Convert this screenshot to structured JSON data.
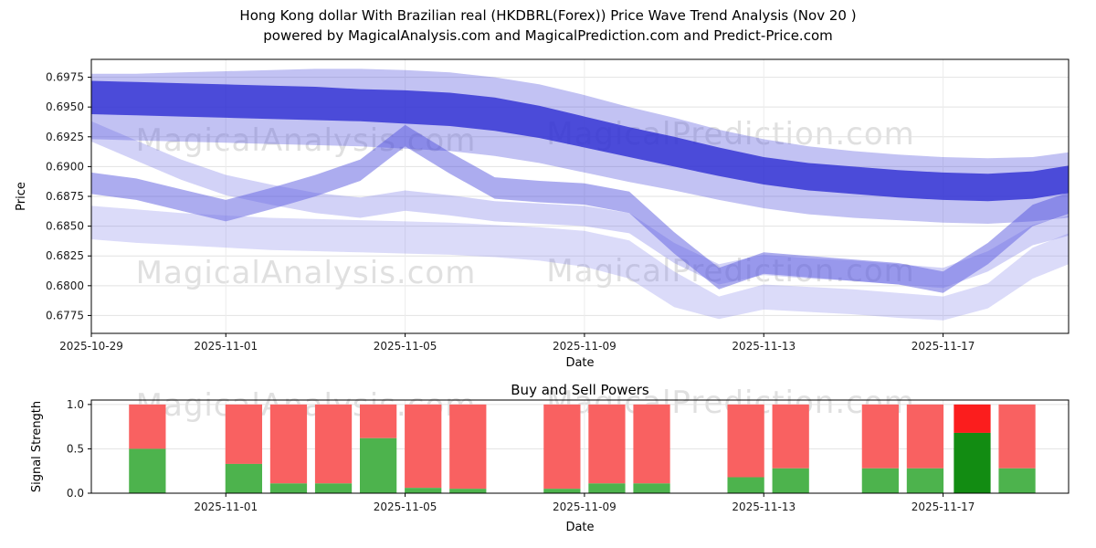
{
  "figure": {
    "title_line1": "Hong Kong dollar With Brazilian real (HKDBRL(Forex)) Price Wave Trend Analysis (Nov 20 )",
    "title_line2": "powered by MagicalAnalysis.com and MagicalPrediction.com and Predict-Price.com",
    "watermark": {
      "left": "MagicalAnalysis.com",
      "right": "MagicalPrediction.com",
      "color": "#cccccc"
    }
  },
  "chart_data": [
    {
      "type": "area",
      "title": "Price Wave Trend",
      "xlabel": "Date",
      "ylabel": "Price",
      "x_origin_date": "2025-10-29",
      "xlim_days": [
        0,
        21.8
      ],
      "ylim": [
        0.676,
        0.699
      ],
      "grid": true,
      "xticks": [
        {
          "day": 0,
          "label": "2025-10-29"
        },
        {
          "day": 3,
          "label": "2025-11-01"
        },
        {
          "day": 7,
          "label": "2025-11-05"
        },
        {
          "day": 11,
          "label": "2025-11-09"
        },
        {
          "day": 15,
          "label": "2025-11-13"
        },
        {
          "day": 19,
          "label": "2025-11-17"
        }
      ],
      "yticks": [
        {
          "v": 0.6775,
          "label": "0.6775"
        },
        {
          "v": 0.68,
          "label": "0.6800"
        },
        {
          "v": 0.6825,
          "label": "0.6825"
        },
        {
          "v": 0.685,
          "label": "0.6850"
        },
        {
          "v": 0.6875,
          "label": "0.6875"
        },
        {
          "v": 0.69,
          "label": "0.6900"
        },
        {
          "v": 0.6925,
          "label": "0.6925"
        },
        {
          "v": 0.695,
          "label": "0.6950"
        },
        {
          "v": 0.6975,
          "label": "0.6975"
        }
      ],
      "days": [
        0,
        1,
        2,
        3,
        4,
        5,
        6,
        7,
        8,
        9,
        10,
        11,
        12,
        13,
        14,
        15,
        16,
        17,
        18,
        19,
        20,
        21,
        22
      ],
      "bands": [
        {
          "name": "outer-envelope",
          "color": "#4f4fdd",
          "opacity": 0.35,
          "upper": [
            0.6978,
            0.6978,
            0.6979,
            0.698,
            0.6981,
            0.6982,
            0.6982,
            0.6981,
            0.6979,
            0.6975,
            0.6969,
            0.696,
            0.695,
            0.6941,
            0.6931,
            0.6923,
            0.6917,
            0.6913,
            0.691,
            0.6908,
            0.6907,
            0.6908,
            0.6913
          ],
          "lower": [
            0.6923,
            0.6922,
            0.6921,
            0.692,
            0.6919,
            0.6918,
            0.6917,
            0.6915,
            0.6913,
            0.6909,
            0.6903,
            0.6895,
            0.6887,
            0.688,
            0.6872,
            0.6865,
            0.686,
            0.6857,
            0.6855,
            0.6853,
            0.6852,
            0.6854,
            0.6858
          ]
        },
        {
          "name": "dark-core",
          "color": "#2d2dd2",
          "opacity": 0.8,
          "upper": [
            0.6972,
            0.6971,
            0.697,
            0.6969,
            0.6968,
            0.6967,
            0.6965,
            0.6964,
            0.6962,
            0.6958,
            0.6951,
            0.6942,
            0.6933,
            0.6925,
            0.6916,
            0.6908,
            0.6903,
            0.69,
            0.6897,
            0.6895,
            0.6894,
            0.6896,
            0.6902
          ],
          "lower": [
            0.6944,
            0.6943,
            0.6942,
            0.6941,
            0.694,
            0.6939,
            0.6938,
            0.6936,
            0.6934,
            0.693,
            0.6924,
            0.6916,
            0.6908,
            0.69,
            0.6892,
            0.6885,
            0.688,
            0.6877,
            0.6874,
            0.6872,
            0.6871,
            0.6873,
            0.6879
          ]
        },
        {
          "name": "wavy-mid",
          "color": "#4646dc",
          "opacity": 0.45,
          "upper": [
            0.6895,
            0.689,
            0.6881,
            0.6872,
            0.6882,
            0.6893,
            0.6906,
            0.6935,
            0.6912,
            0.6891,
            0.6888,
            0.6886,
            0.6879,
            0.6845,
            0.6815,
            0.6828,
            0.6825,
            0.6822,
            0.6819,
            0.6812,
            0.6836,
            0.6868,
            0.6881
          ],
          "lower": [
            0.6877,
            0.6872,
            0.6863,
            0.6854,
            0.6864,
            0.6875,
            0.6888,
            0.6917,
            0.6894,
            0.6873,
            0.687,
            0.6868,
            0.6861,
            0.6827,
            0.6797,
            0.681,
            0.6807,
            0.6804,
            0.6801,
            0.6794,
            0.6818,
            0.685,
            0.6863
          ]
        },
        {
          "name": "crossing-band",
          "color": "#6a6ae6",
          "opacity": 0.3,
          "upper": [
            0.6938,
            0.6922,
            0.6906,
            0.6893,
            0.6885,
            0.6878,
            0.6874,
            0.688,
            0.6876,
            0.6871,
            0.6869,
            0.6867,
            0.6861,
            0.6836,
            0.6818,
            0.6826,
            0.6823,
            0.6821,
            0.6818,
            0.6815,
            0.6829,
            0.6851,
            0.6861
          ],
          "lower": [
            0.6921,
            0.6905,
            0.6889,
            0.6876,
            0.6868,
            0.6861,
            0.6857,
            0.6863,
            0.6859,
            0.6854,
            0.6852,
            0.685,
            0.6844,
            0.6819,
            0.6801,
            0.6809,
            0.6806,
            0.6804,
            0.6801,
            0.6798,
            0.6812,
            0.6834,
            0.6844
          ]
        },
        {
          "name": "lower-light",
          "color": "#7d7deb",
          "opacity": 0.28,
          "upper": [
            0.6867,
            0.6864,
            0.6861,
            0.6859,
            0.6857,
            0.6856,
            0.6855,
            0.6854,
            0.6853,
            0.6851,
            0.6849,
            0.6846,
            0.6838,
            0.6812,
            0.6791,
            0.6801,
            0.6799,
            0.6797,
            0.6794,
            0.6791,
            0.6802,
            0.6832,
            0.6847
          ],
          "lower": [
            0.6839,
            0.6836,
            0.6834,
            0.6832,
            0.683,
            0.6829,
            0.6828,
            0.6827,
            0.6826,
            0.6824,
            0.6821,
            0.6816,
            0.6806,
            0.6782,
            0.6772,
            0.678,
            0.6778,
            0.6776,
            0.6773,
            0.6771,
            0.6781,
            0.6806,
            0.6821
          ]
        }
      ]
    },
    {
      "type": "bar",
      "title": "Buy and Sell Powers",
      "xlabel": "Date",
      "ylabel": "Signal Strength",
      "x_origin_date": "2025-10-29",
      "xlim_days": [
        0,
        21.8
      ],
      "ylim": [
        0,
        1.05
      ],
      "grid": true,
      "bar_width_days": 0.82,
      "default_buy_color": "#4db34d",
      "default_sell_color": "#f96161",
      "xticks": [
        {
          "day": 3,
          "label": "2025-11-01"
        },
        {
          "day": 7,
          "label": "2025-11-05"
        },
        {
          "day": 11,
          "label": "2025-11-09"
        },
        {
          "day": 15,
          "label": "2025-11-13"
        },
        {
          "day": 19,
          "label": "2025-11-17"
        }
      ],
      "yticks": [
        {
          "v": 0.0,
          "label": "0.0"
        },
        {
          "v": 0.5,
          "label": "0.5"
        },
        {
          "v": 1.0,
          "label": "1.0"
        }
      ],
      "bars": [
        {
          "date": "2025-10-30",
          "day": 1.25,
          "buy": 0.5,
          "sell": 0.5
        },
        {
          "date": "2025-11-01",
          "day": 3.4,
          "buy": 0.33,
          "sell": 0.67
        },
        {
          "date": "2025-11-02",
          "day": 4.4,
          "buy": 0.11,
          "sell": 0.89
        },
        {
          "date": "2025-11-03",
          "day": 5.4,
          "buy": 0.11,
          "sell": 0.89
        },
        {
          "date": "2025-11-04",
          "day": 6.4,
          "buy": 0.62,
          "sell": 0.38
        },
        {
          "date": "2025-11-05",
          "day": 7.4,
          "buy": 0.06,
          "sell": 0.94
        },
        {
          "date": "2025-11-06",
          "day": 8.4,
          "buy": 0.05,
          "sell": 0.95
        },
        {
          "date": "2025-11-08",
          "day": 10.5,
          "buy": 0.05,
          "sell": 0.95
        },
        {
          "date": "2025-11-09",
          "day": 11.5,
          "buy": 0.11,
          "sell": 0.89
        },
        {
          "date": "2025-11-10",
          "day": 12.5,
          "buy": 0.11,
          "sell": 0.89
        },
        {
          "date": "2025-11-12",
          "day": 14.6,
          "buy": 0.18,
          "sell": 0.82
        },
        {
          "date": "2025-11-13",
          "day": 15.6,
          "buy": 0.28,
          "sell": 0.72
        },
        {
          "date": "2025-11-15",
          "day": 17.6,
          "buy": 0.28,
          "sell": 0.72
        },
        {
          "date": "2025-11-16",
          "day": 18.6,
          "buy": 0.28,
          "sell": 0.72
        },
        {
          "date": "2025-11-17",
          "day": 19.65,
          "buy": 0.68,
          "sell": 0.32,
          "buy_color": "#128c12",
          "sell_color": "#fb1d1d"
        },
        {
          "date": "2025-11-18",
          "day": 20.65,
          "buy": 0.28,
          "sell": 0.72
        }
      ]
    }
  ]
}
